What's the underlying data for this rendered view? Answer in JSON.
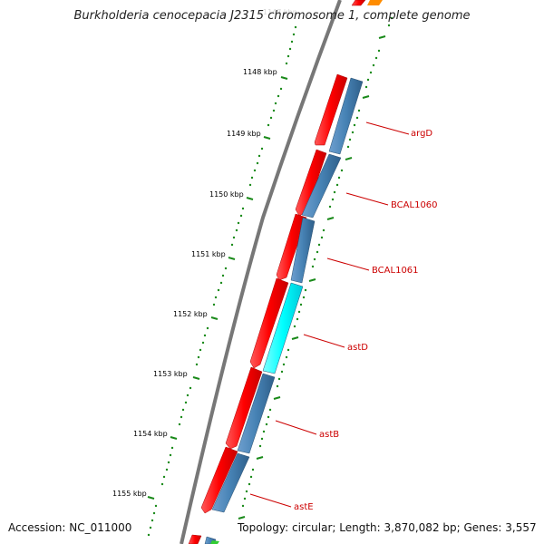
{
  "title": "Burkholderia cenocepacia J2315 chromosome 1, complete genome",
  "accession": "Accession: NC_011000",
  "topology": "Topology: circular; Length: 3,870,082 bp; Genes: 3,557",
  "ticks": [
    {
      "label": "1148 kbp"
    },
    {
      "label": "1149 kbp"
    },
    {
      "label": "1150 kbp"
    },
    {
      "label": "1151 kbp"
    },
    {
      "label": "1152 kbp"
    },
    {
      "label": "1153 kbp"
    },
    {
      "label": "1154 kbp"
    },
    {
      "label": "1155 kbp"
    }
  ],
  "genes": [
    {
      "name": "argD"
    },
    {
      "name": "BCAL1060"
    },
    {
      "name": "BCAL1061"
    },
    {
      "name": "astD"
    },
    {
      "name": "astB"
    },
    {
      "name": "astE"
    }
  ],
  "colors": {
    "cds": "#ff0000",
    "gene": "#4682b4",
    "highlight": "#00ffff",
    "tick": "#006400",
    "backbone": "#777777",
    "label": "#cc0000"
  }
}
